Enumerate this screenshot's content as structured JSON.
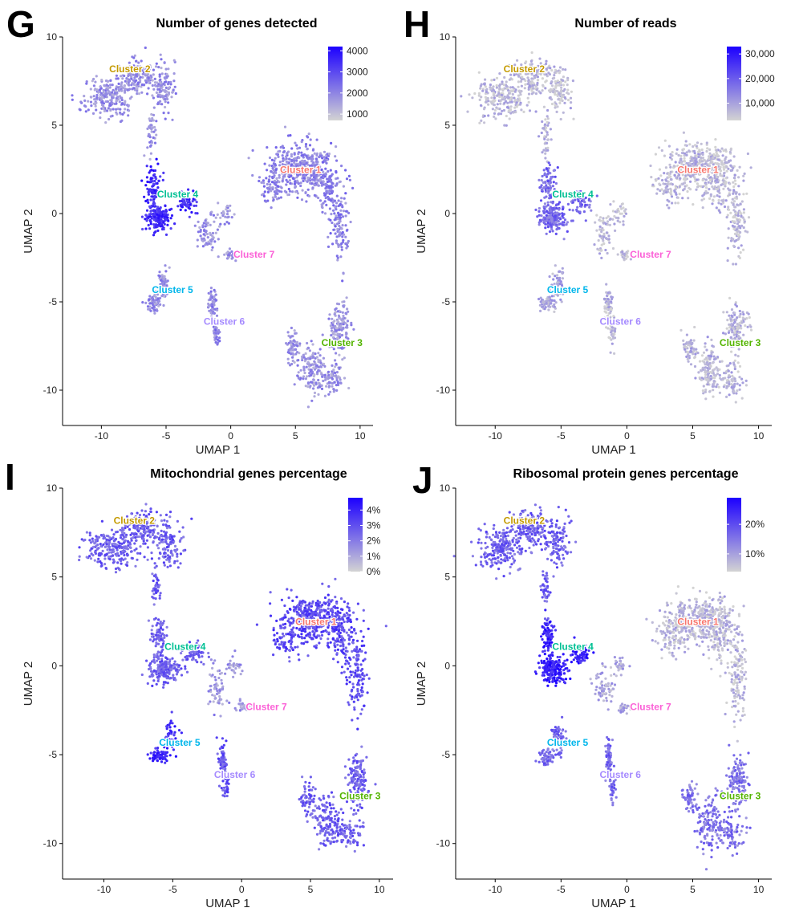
{
  "colors": {
    "low": "#d3d3d3",
    "high": "#1c00ff",
    "cluster_1": "#f8766d",
    "cluster_2": "#c49a00",
    "cluster_3": "#53b400",
    "cluster_4": "#00c094",
    "cluster_5": "#00b6eb",
    "cluster_6": "#a58aff",
    "cluster_7": "#fb61d7"
  },
  "chart_data": [
    {
      "type": "scatter",
      "panel": "G",
      "title": "Number of genes detected",
      "xlabel": "UMAP 1",
      "ylabel": "UMAP 2",
      "xlim": [
        -13,
        11
      ],
      "ylim": [
        -12,
        10
      ],
      "xticks": [
        -10,
        -5,
        0,
        5,
        10
      ],
      "xtick_labels": [
        "-10",
        "-5",
        "0",
        "5",
        "10"
      ],
      "yticks": [
        -10,
        -5,
        0,
        5,
        10
      ],
      "ytick_labels": [
        "-10",
        "-5",
        "0",
        "5",
        "10"
      ],
      "grid": false,
      "legend": {
        "placement": "top-right",
        "type": "colorbar",
        "range": [
          700,
          4200
        ],
        "ticks": [
          4000,
          3000,
          2000,
          1000
        ],
        "labels": [
          "4000",
          "3000",
          "2000",
          "1000"
        ]
      },
      "clusters": [
        {
          "name": "Cluster 1",
          "x": 5.4,
          "y": 2.3,
          "color": "cluster_1",
          "intensity": 0.38
        },
        {
          "name": "Cluster 2",
          "x": -7.8,
          "y": 8.0,
          "color": "cluster_2",
          "intensity": 0.32
        },
        {
          "name": "Cluster 3",
          "x": 8.6,
          "y": -7.5,
          "color": "cluster_3",
          "intensity": 0.3
        },
        {
          "name": "Cluster 4",
          "x": -4.1,
          "y": 0.9,
          "color": "cluster_4",
          "intensity": 0.8
        },
        {
          "name": "Cluster 5",
          "x": -4.5,
          "y": -4.5,
          "color": "cluster_5",
          "intensity": 0.32
        },
        {
          "name": "Cluster 6",
          "x": -0.5,
          "y": -6.3,
          "color": "cluster_6",
          "intensity": 0.38
        },
        {
          "name": "Cluster 7",
          "x": 1.8,
          "y": -2.5,
          "color": "cluster_7",
          "intensity": 0.3
        }
      ]
    },
    {
      "type": "scatter",
      "panel": "H",
      "title": "Number of reads",
      "xlabel": "UMAP 1",
      "ylabel": "UMAP 2",
      "xlim": [
        -13,
        11
      ],
      "ylim": [
        -12,
        10
      ],
      "xticks": [
        -10,
        -5,
        0,
        5,
        10
      ],
      "xtick_labels": [
        "-10",
        "-5",
        "0",
        "5",
        "10"
      ],
      "yticks": [
        -10,
        -5,
        0,
        5,
        10
      ],
      "ytick_labels": [
        "-10",
        "-5",
        "0",
        "5",
        "10"
      ],
      "grid": false,
      "legend": {
        "placement": "top-right",
        "type": "colorbar",
        "range": [
          3000,
          33000
        ],
        "ticks": [
          30000,
          20000,
          10000
        ],
        "labels": [
          "30,000",
          "20,000",
          "10,000"
        ]
      },
      "clusters": [
        {
          "name": "Cluster 1",
          "x": 5.4,
          "y": 2.3,
          "color": "cluster_1",
          "intensity": 0.12
        },
        {
          "name": "Cluster 2",
          "x": -7.8,
          "y": 8.0,
          "color": "cluster_2",
          "intensity": 0.12
        },
        {
          "name": "Cluster 3",
          "x": 8.6,
          "y": -7.5,
          "color": "cluster_3",
          "intensity": 0.14
        },
        {
          "name": "Cluster 4",
          "x": -4.1,
          "y": 0.9,
          "color": "cluster_4",
          "intensity": 0.5
        },
        {
          "name": "Cluster 5",
          "x": -4.5,
          "y": -4.5,
          "color": "cluster_5",
          "intensity": 0.2
        },
        {
          "name": "Cluster 6",
          "x": -0.5,
          "y": -6.3,
          "color": "cluster_6",
          "intensity": 0.12
        },
        {
          "name": "Cluster 7",
          "x": 1.8,
          "y": -2.5,
          "color": "cluster_7",
          "intensity": 0.1
        }
      ]
    },
    {
      "type": "scatter",
      "panel": "I",
      "title": "Mitochondrial genes percentage",
      "xlabel": "UMAP 1",
      "ylabel": "UMAP 2",
      "xlim": [
        -13,
        11
      ],
      "ylim": [
        -12,
        10
      ],
      "xticks": [
        -10,
        -5,
        0,
        5,
        10
      ],
      "xtick_labels": [
        "-10",
        "-5",
        "0",
        "5",
        "10"
      ],
      "yticks": [
        -10,
        -5,
        0,
        5,
        10
      ],
      "ytick_labels": [
        "-10",
        "-5",
        "0",
        "5",
        "10"
      ],
      "grid": false,
      "legend": {
        "placement": "top-right",
        "type": "colorbar",
        "range": [
          0,
          4.8
        ],
        "ticks": [
          4,
          3,
          2,
          1,
          0
        ],
        "labels": [
          "4%",
          "3%",
          "2%",
          "1%",
          "0%"
        ]
      },
      "clusters": [
        {
          "name": "Cluster 1",
          "x": 5.4,
          "y": 2.3,
          "color": "cluster_1",
          "intensity": 0.65
        },
        {
          "name": "Cluster 2",
          "x": -7.8,
          "y": 8.0,
          "color": "cluster_2",
          "intensity": 0.55
        },
        {
          "name": "Cluster 3",
          "x": 8.6,
          "y": -7.5,
          "color": "cluster_3",
          "intensity": 0.55
        },
        {
          "name": "Cluster 4",
          "x": -4.1,
          "y": 0.9,
          "color": "cluster_4",
          "intensity": 0.55
        },
        {
          "name": "Cluster 5",
          "x": -4.5,
          "y": -4.5,
          "color": "cluster_5",
          "intensity": 0.8
        },
        {
          "name": "Cluster 6",
          "x": -0.5,
          "y": -6.3,
          "color": "cluster_6",
          "intensity": 0.6
        },
        {
          "name": "Cluster 7",
          "x": 1.8,
          "y": -2.5,
          "color": "cluster_7",
          "intensity": 0.3
        }
      ]
    },
    {
      "type": "scatter",
      "panel": "J",
      "title": "Ribosomal protein genes percentage",
      "xlabel": "UMAP 1",
      "ylabel": "UMAP 2",
      "xlim": [
        -13,
        11
      ],
      "ylim": [
        -12,
        10
      ],
      "xticks": [
        -10,
        -5,
        0,
        5,
        10
      ],
      "xtick_labels": [
        "-10",
        "-5",
        "0",
        "5",
        "10"
      ],
      "yticks": [
        -10,
        -5,
        0,
        5,
        10
      ],
      "ytick_labels": [
        "-10",
        "-5",
        "0",
        "5",
        "10"
      ],
      "grid": false,
      "legend": {
        "placement": "top-right",
        "type": "colorbar",
        "range": [
          4,
          29
        ],
        "ticks": [
          20,
          10
        ],
        "labels": [
          "20%",
          "10%"
        ]
      },
      "clusters": [
        {
          "name": "Cluster 1",
          "x": 5.4,
          "y": 2.3,
          "color": "cluster_1",
          "intensity": 0.12
        },
        {
          "name": "Cluster 2",
          "x": -7.8,
          "y": 8.0,
          "color": "cluster_2",
          "intensity": 0.55
        },
        {
          "name": "Cluster 3",
          "x": 8.6,
          "y": -7.5,
          "color": "cluster_3",
          "intensity": 0.45
        },
        {
          "name": "Cluster 4",
          "x": -4.1,
          "y": 0.9,
          "color": "cluster_4",
          "intensity": 0.85
        },
        {
          "name": "Cluster 5",
          "x": -4.5,
          "y": -4.5,
          "color": "cluster_5",
          "intensity": 0.5
        },
        {
          "name": "Cluster 6",
          "x": -0.5,
          "y": -6.3,
          "color": "cluster_6",
          "intensity": 0.5
        },
        {
          "name": "Cluster 7",
          "x": 1.8,
          "y": -2.5,
          "color": "cluster_7",
          "intensity": 0.2
        }
      ]
    }
  ]
}
